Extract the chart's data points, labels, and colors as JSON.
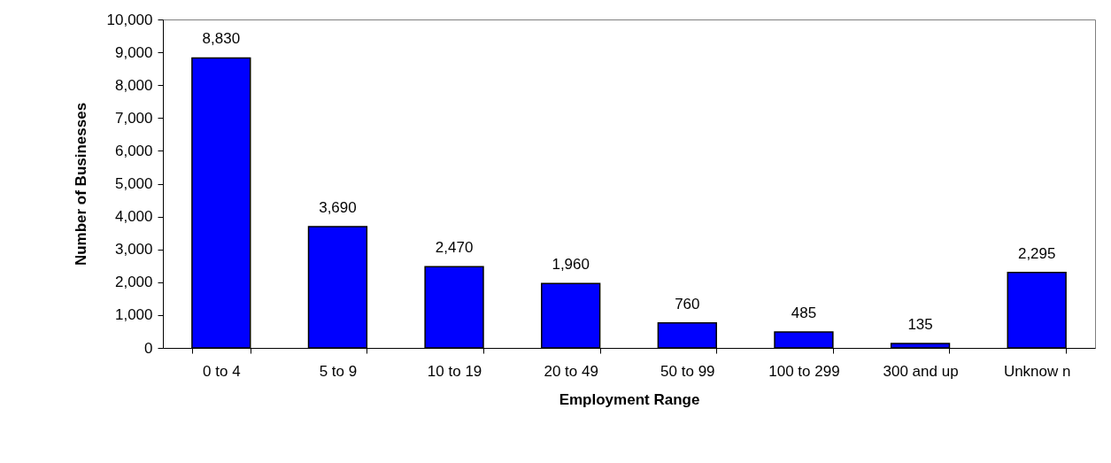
{
  "chart_data": {
    "type": "bar",
    "xlabel": "Employment Range",
    "ylabel": "Number of Businesses",
    "categories": [
      "0 to 4",
      "5 to 9",
      "10 to 19",
      "20 to 49",
      "50 to 99",
      "100 to 299",
      "300 and up",
      "Unknow n"
    ],
    "series": [
      {
        "color": "#0000ff",
        "values": [
          8830,
          3690,
          2470,
          1960,
          760,
          485,
          135,
          2295
        ],
        "value_labels": [
          "8,830",
          "3,690",
          "2,470",
          "1,960",
          "760",
          "485",
          "135",
          "2,295"
        ]
      }
    ],
    "ylim": [
      0,
      10000
    ],
    "yticks": [
      0,
      {
        "value": 1000,
        "label": "1,000"
      },
      {
        "value": 2000,
        "label": "2,000"
      },
      {
        "value": 3000,
        "label": "3,000"
      },
      {
        "value": 4000,
        "label": "4,000"
      },
      {
        "value": 5000,
        "label": "5,000"
      },
      {
        "value": 6000,
        "label": "6,000"
      },
      {
        "value": 7000,
        "label": "7,000"
      },
      {
        "value": 8000,
        "label": "8,000"
      },
      {
        "value": 9000,
        "label": "9,000"
      },
      {
        "value": 10000,
        "label": "10,000"
      }
    ],
    "grid": false
  }
}
